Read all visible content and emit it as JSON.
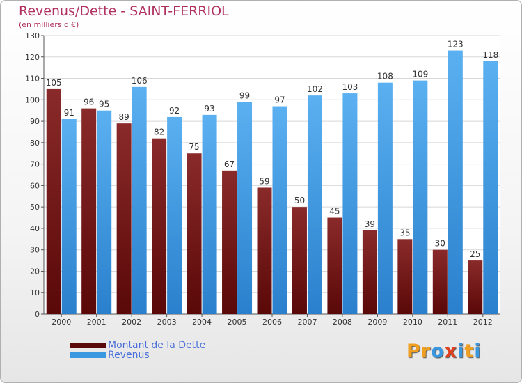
{
  "chart_data": {
    "type": "bar",
    "title": "Revenus/Dette - SAINT-FERRIOL",
    "subtitle": "(en milliers d'€)",
    "xlabel": "",
    "ylabel": "",
    "ylim": [
      0,
      130
    ],
    "yticks": [
      0,
      10,
      20,
      30,
      40,
      50,
      60,
      70,
      80,
      90,
      100,
      110,
      120,
      130
    ],
    "grid": true,
    "categories": [
      "2000",
      "2001",
      "2002",
      "2003",
      "2004",
      "2005",
      "2006",
      "2007",
      "2008",
      "2009",
      "2010",
      "2011",
      "2012"
    ],
    "series": [
      {
        "name": "Montant de la Dette",
        "color": "#7a1a1a",
        "values": [
          105,
          96,
          89,
          82,
          75,
          67,
          59,
          50,
          45,
          39,
          35,
          30,
          25
        ]
      },
      {
        "name": "Revenus",
        "color": "#3a98e0",
        "values": [
          91,
          95,
          106,
          92,
          93,
          99,
          97,
          102,
          103,
          108,
          109,
          123,
          118
        ]
      }
    ],
    "legend_position": "bottom-left"
  },
  "legend": {
    "items": [
      {
        "label": "Montant de la Dette",
        "color": "#5a0a0a"
      },
      {
        "label": "Revenus",
        "color": "#3a98e0"
      }
    ]
  },
  "logo": {
    "letters": [
      {
        "char": "P",
        "color": "#f0a020"
      },
      {
        "char": "r",
        "color": "#f0a020"
      },
      {
        "char": "o",
        "color": "#3a98e0"
      },
      {
        "char": "x",
        "color": "#e04020"
      },
      {
        "char": "i",
        "color": "#3a98e0"
      },
      {
        "char": "t",
        "color": "#f0a020"
      },
      {
        "char": "i",
        "color": "#3a98e0"
      }
    ]
  }
}
